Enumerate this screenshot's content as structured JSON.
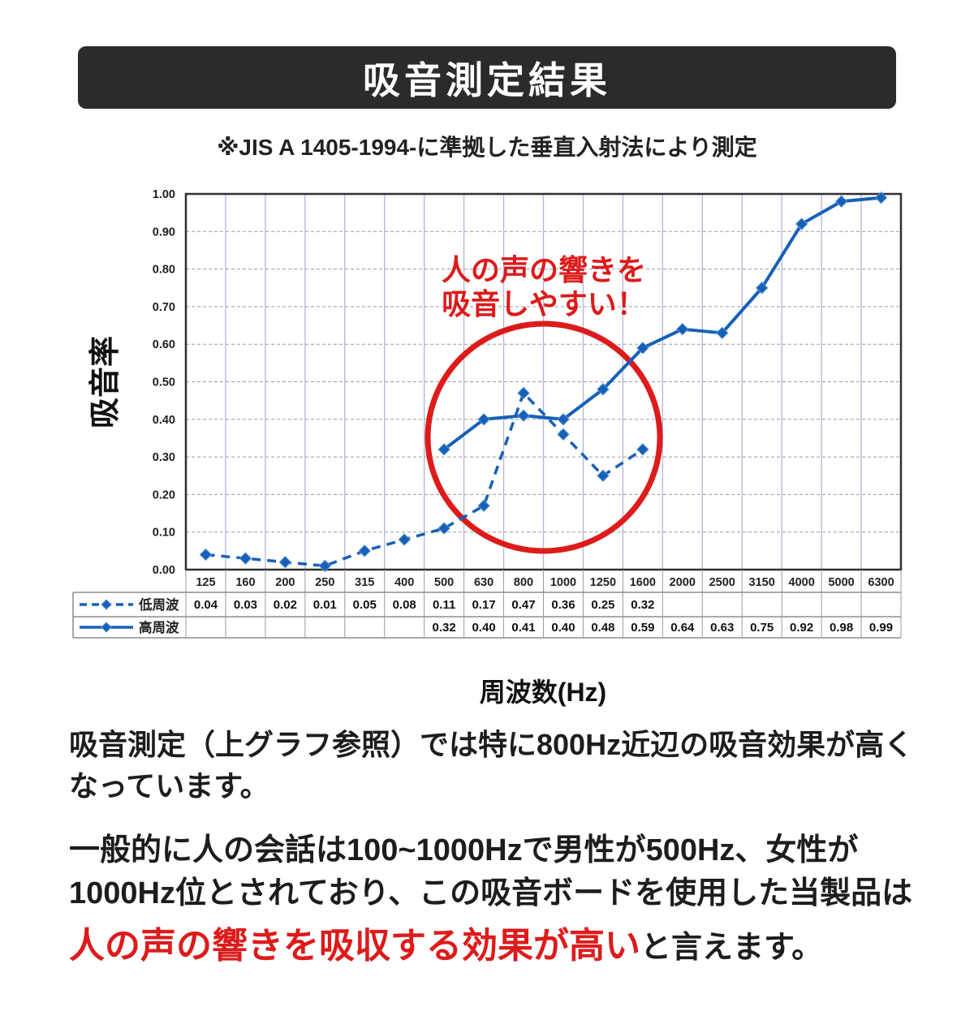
{
  "header": {
    "title": "吸音測定結果",
    "subtitle": "※JIS A 1405-1994-に準拠した垂直入射法により測定"
  },
  "chart_data": {
    "type": "line",
    "ylabel": "吸音率",
    "xlabel": "周波数(Hz)",
    "ylim": [
      0,
      1.0
    ],
    "ytick_step": 0.1,
    "grid": true,
    "legend_position": "table-left",
    "categories": [
      125,
      160,
      200,
      250,
      315,
      400,
      500,
      630,
      800,
      1000,
      1250,
      1600,
      2000,
      2500,
      3150,
      4000,
      5000,
      6300
    ],
    "series": [
      {
        "name": "低周波",
        "style": "dashed",
        "values": [
          0.04,
          0.03,
          0.02,
          0.01,
          0.05,
          0.08,
          0.11,
          0.17,
          0.47,
          0.36,
          0.25,
          0.32,
          null,
          null,
          null,
          null,
          null,
          null
        ]
      },
      {
        "name": "高周波",
        "style": "solid",
        "values": [
          null,
          null,
          null,
          null,
          null,
          null,
          0.32,
          0.4,
          0.41,
          0.4,
          0.48,
          0.59,
          0.64,
          0.63,
          0.75,
          0.92,
          0.98,
          0.99
        ]
      }
    ],
    "annotation": {
      "lines": [
        "人の声の響きを",
        "吸音しやすい！"
      ],
      "highlight_range_hz": [
        500,
        1600
      ]
    }
  },
  "body": {
    "p1_lines": [
      "吸音測定（上グラフ参照）では特に800Hz近辺の吸音効果が高く",
      "なっています。"
    ],
    "p2_lines": [
      "一般的に人の会話は100~1000Hzで男性が500Hz、女性が",
      "1000Hz位とされており、この吸音ボードを使用した当製品は"
    ],
    "p2_red": "人の声の響きを吸収する効果が高い",
    "p2_tail": "と言えます。"
  },
  "colors": {
    "banner_bg": "#2b2b2b",
    "line_blue": "#1660b8",
    "accent_red": "#dd1b1b",
    "grid_vertical": "#b4b4d4",
    "grid_horizontal": "#9a9aa8"
  }
}
